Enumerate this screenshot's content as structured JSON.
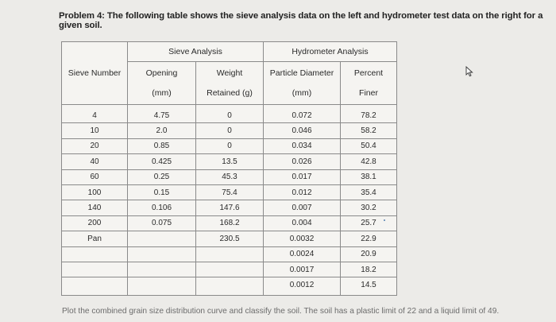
{
  "problem_text": "Problem 4: The following table shows the sieve analysis data on the left and hydrometer test data on the right for a given soil.",
  "table": {
    "group_sieve": "Sieve Analysis",
    "group_hydrometer": "Hydrometer Analysis",
    "headers": {
      "sieve_number": "Sieve Number",
      "opening_1": "Opening",
      "opening_2": "(mm)",
      "weight_1": "Weight",
      "weight_2": "Retained (g)",
      "diameter_1": "Particle Diameter",
      "diameter_2": "(mm)",
      "percent_1": "Percent",
      "percent_2": "Finer"
    },
    "sieve_numbers": [
      "4",
      "10",
      "20",
      "40",
      "60",
      "100",
      "140",
      "200",
      "Pan",
      "",
      "",
      ""
    ],
    "openings": [
      "4.75",
      "2.0",
      "0.85",
      "0.425",
      "0.25",
      "0.15",
      "0.106",
      "0.075",
      "",
      "",
      "",
      ""
    ],
    "weights": [
      "0",
      "0",
      "0",
      "13.5",
      "45.3",
      "75.4",
      "147.6",
      "168.2",
      "230.5",
      "",
      "",
      ""
    ],
    "diameters": [
      "0.072",
      "0.046",
      "0.034",
      "0.026",
      "0.017",
      "0.012",
      "0.007",
      "0.004",
      "0.0032",
      "0.0024",
      "0.0017",
      "0.0012"
    ],
    "percents": [
      "78.2",
      "58.2",
      "50.4",
      "42.8",
      "38.1",
      "35.4",
      "30.2",
      "25.7",
      "22.9",
      "20.9",
      "18.2",
      "14.5"
    ]
  },
  "note_text": "Plot the combined grain size distribution curve and classify the soil. The soil has a plastic limit of 22 and a liquid limit of 49."
}
